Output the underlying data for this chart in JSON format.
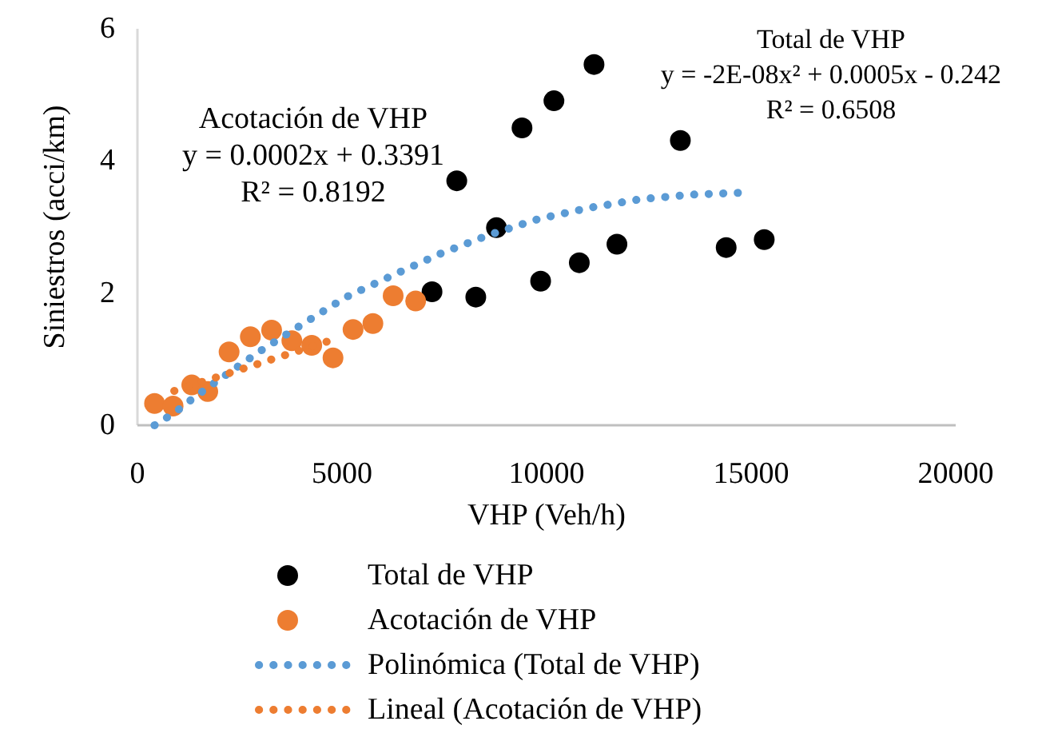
{
  "chart_data": {
    "type": "scatter",
    "xlabel": "VHP (Veh/h)",
    "ylabel": "Siniestros (acci/km)",
    "xlim": [
      0,
      20000
    ],
    "ylim": [
      0,
      6
    ],
    "xticks": [
      0,
      5000,
      10000,
      15000,
      20000
    ],
    "yticks": [
      0,
      2,
      4,
      6
    ],
    "grid": false,
    "legend": "bottom",
    "marker": "circle",
    "series": [
      {
        "name": "Total de VHP",
        "color": "#000000",
        "x": [
          7200,
          7805,
          8270,
          8775,
          9400,
          9855,
          10180,
          10800,
          11160,
          11720,
          13270,
          14390,
          15320
        ],
        "values": [
          2.02,
          3.7,
          1.94,
          2.99,
          4.5,
          2.18,
          4.91,
          2.46,
          5.46,
          2.74,
          4.31,
          2.69,
          2.81
        ]
      },
      {
        "name": "Acotación de VHP",
        "color": "#ed7d31",
        "x": [
          418,
          871,
          1328,
          1719,
          2240,
          2760,
          3280,
          3775,
          4260,
          4780,
          5270,
          5755,
          6250,
          6800
        ],
        "values": [
          0.33,
          0.29,
          0.61,
          0.51,
          1.11,
          1.34,
          1.44,
          1.28,
          1.21,
          1.02,
          1.45,
          1.54,
          1.96,
          1.88
        ]
      },
      {
        "name": "Polinómica (Total de VHP)",
        "type": "line",
        "line_style": "dotted",
        "marker": "none",
        "color": "#5b9bd5",
        "x": [
          418,
          910,
          1406,
          1926,
          2970,
          4035,
          5100,
          6275,
          7420,
          8594,
          9790,
          11040,
          12280,
          13540,
          14800
        ],
        "values": [
          0,
          0.19,
          0.43,
          0.66,
          1.11,
          1.53,
          1.94,
          2.28,
          2.6,
          2.88,
          3.12,
          3.29,
          3.42,
          3.49,
          3.52
        ]
      },
      {
        "name": "Lineal (Acotación de VHP)",
        "type": "line",
        "line_style": "dotted",
        "marker": "none",
        "color": "#ed7d31",
        "x": [
          900,
          4800
        ],
        "values": [
          0.52,
          1.3
        ]
      }
    ],
    "annotations": [
      "Acotación de VHP\ny = 0.0002x + 0.3391\nR² = 0.8192",
      "Total de VHP\ny = -2E-08x² + 0.0005x - 0.242\nR² = 0.6508"
    ]
  }
}
